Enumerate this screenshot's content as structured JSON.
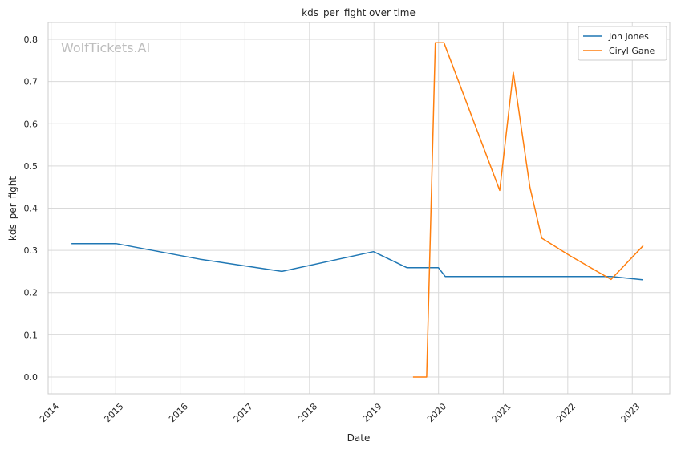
{
  "chart_data": {
    "type": "line",
    "title": "kds_per_fight over time",
    "xlabel": "Date",
    "ylabel": "kds_per_fight",
    "watermark": "WolfTickets.AI",
    "x_ticks": [
      "2014",
      "2015",
      "2016",
      "2017",
      "2018",
      "2019",
      "2020",
      "2021",
      "2022",
      "2023"
    ],
    "y_ticks": [
      "0.0",
      "0.1",
      "0.2",
      "0.3",
      "0.4",
      "0.5",
      "0.6",
      "0.7",
      "0.8"
    ],
    "xlim": [
      "2013-12-15",
      "2023-08-01"
    ],
    "ylim": [
      -0.04,
      0.84
    ],
    "grid": true,
    "legend_position": "top-right",
    "series": [
      {
        "name": "Jon Jones",
        "color": "#1f77b4",
        "points": [
          [
            "2014-04-26",
            0.316
          ],
          [
            "2015-01-03",
            0.316
          ],
          [
            "2016-04-23",
            0.279
          ],
          [
            "2017-07-29",
            0.25
          ],
          [
            "2018-12-29",
            0.297
          ],
          [
            "2019-07-06",
            0.259
          ],
          [
            "2019-12-31",
            0.259
          ],
          [
            "2020-02-08",
            0.238
          ],
          [
            "2022-09-03",
            0.238
          ],
          [
            "2023-03-04",
            0.23
          ]
        ]
      },
      {
        "name": "Ciryl Gane",
        "color": "#ff7f0e",
        "points": [
          [
            "2019-08-10",
            0.0
          ],
          [
            "2019-10-26",
            0.0
          ],
          [
            "2019-12-14",
            0.792
          ],
          [
            "2020-02-01",
            0.792
          ],
          [
            "2020-12-12",
            0.442
          ],
          [
            "2021-02-27",
            0.722
          ],
          [
            "2021-06-01",
            0.45
          ],
          [
            "2021-08-07",
            0.329
          ],
          [
            "2022-01-15",
            0.287
          ],
          [
            "2022-09-03",
            0.231
          ],
          [
            "2023-03-04",
            0.311
          ]
        ]
      }
    ]
  }
}
